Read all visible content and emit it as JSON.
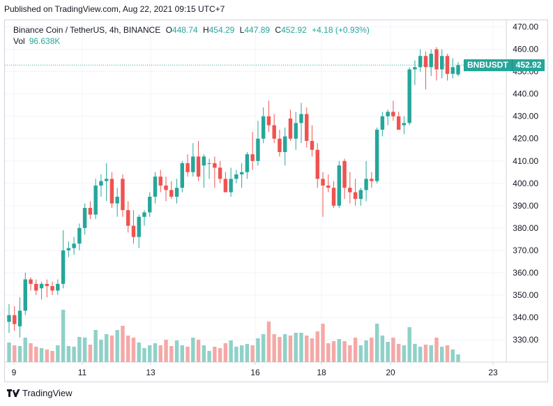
{
  "header": {
    "published": "Published on TradingView.com, Aug 22, 2021 09:15 UTC+7"
  },
  "legend": {
    "symbol": "Binance Coin / TetherUS, 4h, BINANCE",
    "open_label": "O",
    "open": "448.74",
    "high_label": "H",
    "high": "454.29",
    "low_label": "L",
    "low": "447.89",
    "close_label": "C",
    "close": "452.92",
    "change": "+4.18 (+0.93%)",
    "vol_label": "Vol",
    "vol": "96.638K"
  },
  "price_tag": {
    "symbol": "BNBUSDT",
    "price": "452.92"
  },
  "footer": {
    "brand": "TradingView"
  },
  "colors": {
    "up": "#26a69a",
    "down": "#ef5350",
    "up_vol": "#8fd1c8",
    "down_vol": "#f4a9a7"
  },
  "chart_data": {
    "type": "candlestick",
    "title": "Binance Coin / TetherUS, 4h, BINANCE",
    "xlabel": "",
    "ylabel": "",
    "x_ticks": [
      "9",
      "11",
      "13",
      "16",
      "18",
      "20",
      "23"
    ],
    "y_ticks": [
      "330.00",
      "340.00",
      "350.00",
      "360.00",
      "370.00",
      "380.00",
      "390.00",
      "400.00",
      "410.00",
      "420.00",
      "430.00",
      "440.00",
      "450.00",
      "460.00",
      "470.00"
    ],
    "ylim": [
      320,
      473
    ],
    "last_price": 452.92,
    "candles": [
      {
        "o": 338,
        "h": 346,
        "l": 333,
        "c": 341,
        "v": 28
      },
      {
        "o": 341,
        "h": 345,
        "l": 334,
        "c": 337,
        "v": 24
      },
      {
        "o": 336,
        "h": 349,
        "l": 331,
        "c": 343,
        "v": 23
      },
      {
        "o": 343,
        "h": 360,
        "l": 341,
        "c": 357,
        "v": 35
      },
      {
        "o": 357,
        "h": 358,
        "l": 352,
        "c": 355,
        "v": 27
      },
      {
        "o": 355,
        "h": 357,
        "l": 350,
        "c": 352,
        "v": 22
      },
      {
        "o": 353,
        "h": 356,
        "l": 348,
        "c": 355,
        "v": 20
      },
      {
        "o": 355,
        "h": 357,
        "l": 349,
        "c": 354,
        "v": 18
      },
      {
        "o": 354,
        "h": 356,
        "l": 350,
        "c": 352,
        "v": 16
      },
      {
        "o": 352,
        "h": 357,
        "l": 350,
        "c": 355,
        "v": 24
      },
      {
        "o": 355,
        "h": 379,
        "l": 353,
        "c": 370,
        "v": 75
      },
      {
        "o": 370,
        "h": 374,
        "l": 367,
        "c": 371,
        "v": 23
      },
      {
        "o": 371,
        "h": 376,
        "l": 368,
        "c": 373,
        "v": 22
      },
      {
        "o": 373,
        "h": 382,
        "l": 370,
        "c": 380,
        "v": 36
      },
      {
        "o": 380,
        "h": 391,
        "l": 377,
        "c": 389,
        "v": 35
      },
      {
        "o": 389,
        "h": 392,
        "l": 384,
        "c": 386,
        "v": 25
      },
      {
        "o": 386,
        "h": 402,
        "l": 384,
        "c": 399,
        "v": 46
      },
      {
        "o": 399,
        "h": 404,
        "l": 394,
        "c": 401,
        "v": 32
      },
      {
        "o": 401,
        "h": 409,
        "l": 392,
        "c": 402,
        "v": 40
      },
      {
        "o": 402,
        "h": 405,
        "l": 389,
        "c": 391,
        "v": 38
      },
      {
        "o": 391,
        "h": 398,
        "l": 385,
        "c": 394,
        "v": 46
      },
      {
        "o": 402,
        "h": 404,
        "l": 385,
        "c": 388,
        "v": 52
      },
      {
        "o": 388,
        "h": 392,
        "l": 378,
        "c": 381,
        "v": 38
      },
      {
        "o": 381,
        "h": 388,
        "l": 373,
        "c": 376,
        "v": 35
      },
      {
        "o": 376,
        "h": 386,
        "l": 371,
        "c": 385,
        "v": 28
      },
      {
        "o": 385,
        "h": 388,
        "l": 381,
        "c": 387,
        "v": 20
      },
      {
        "o": 387,
        "h": 396,
        "l": 385,
        "c": 394,
        "v": 24
      },
      {
        "o": 394,
        "h": 405,
        "l": 391,
        "c": 403,
        "v": 27
      },
      {
        "o": 403,
        "h": 406,
        "l": 396,
        "c": 399,
        "v": 24
      },
      {
        "o": 399,
        "h": 403,
        "l": 392,
        "c": 397,
        "v": 32
      },
      {
        "o": 397,
        "h": 401,
        "l": 393,
        "c": 394,
        "v": 23
      },
      {
        "o": 394,
        "h": 402,
        "l": 391,
        "c": 398,
        "v": 31
      },
      {
        "o": 398,
        "h": 410,
        "l": 396,
        "c": 409,
        "v": 24
      },
      {
        "o": 409,
        "h": 413,
        "l": 403,
        "c": 405,
        "v": 22
      },
      {
        "o": 405,
        "h": 418,
        "l": 403,
        "c": 412,
        "v": 35
      },
      {
        "o": 412,
        "h": 419,
        "l": 401,
        "c": 403,
        "v": 32
      },
      {
        "o": 408,
        "h": 413,
        "l": 398,
        "c": 412,
        "v": 24
      },
      {
        "o": 409,
        "h": 411,
        "l": 402,
        "c": 409,
        "v": 16
      },
      {
        "o": 409,
        "h": 412,
        "l": 398,
        "c": 407,
        "v": 22
      },
      {
        "o": 407,
        "h": 410,
        "l": 400,
        "c": 402,
        "v": 20
      },
      {
        "o": 402,
        "h": 405,
        "l": 396,
        "c": 396,
        "v": 27
      },
      {
        "o": 396,
        "h": 407,
        "l": 394,
        "c": 402,
        "v": 31
      },
      {
        "o": 402,
        "h": 406,
        "l": 400,
        "c": 404,
        "v": 22
      },
      {
        "o": 404,
        "h": 409,
        "l": 398,
        "c": 405,
        "v": 24
      },
      {
        "o": 405,
        "h": 414,
        "l": 402,
        "c": 413,
        "v": 26
      },
      {
        "o": 413,
        "h": 423,
        "l": 406,
        "c": 410,
        "v": 24
      },
      {
        "o": 410,
        "h": 428,
        "l": 408,
        "c": 420,
        "v": 34
      },
      {
        "o": 420,
        "h": 434,
        "l": 418,
        "c": 430,
        "v": 40
      },
      {
        "o": 430,
        "h": 437,
        "l": 423,
        "c": 426,
        "v": 58
      },
      {
        "o": 426,
        "h": 431,
        "l": 418,
        "c": 420,
        "v": 40
      },
      {
        "o": 420,
        "h": 424,
        "l": 412,
        "c": 414,
        "v": 36
      },
      {
        "o": 414,
        "h": 425,
        "l": 408,
        "c": 421,
        "v": 40
      },
      {
        "o": 429,
        "h": 433,
        "l": 419,
        "c": 420,
        "v": 38
      },
      {
        "o": 420,
        "h": 432,
        "l": 415,
        "c": 427,
        "v": 42
      },
      {
        "o": 427,
        "h": 436,
        "l": 418,
        "c": 431,
        "v": 42
      },
      {
        "o": 431,
        "h": 434,
        "l": 416,
        "c": 419,
        "v": 38
      },
      {
        "o": 419,
        "h": 426,
        "l": 412,
        "c": 415,
        "v": 34
      },
      {
        "o": 415,
        "h": 418,
        "l": 398,
        "c": 402,
        "v": 44
      },
      {
        "o": 402,
        "h": 405,
        "l": 385,
        "c": 399,
        "v": 55
      },
      {
        "o": 399,
        "h": 404,
        "l": 396,
        "c": 398,
        "v": 27
      },
      {
        "o": 398,
        "h": 401,
        "l": 389,
        "c": 390,
        "v": 30
      },
      {
        "o": 390,
        "h": 410,
        "l": 389,
        "c": 408,
        "v": 33
      },
      {
        "o": 410,
        "h": 411,
        "l": 393,
        "c": 398,
        "v": 30
      },
      {
        "o": 398,
        "h": 405,
        "l": 391,
        "c": 396,
        "v": 24
      },
      {
        "o": 396,
        "h": 402,
        "l": 390,
        "c": 393,
        "v": 35
      },
      {
        "o": 393,
        "h": 398,
        "l": 390,
        "c": 397,
        "v": 24
      },
      {
        "o": 397,
        "h": 410,
        "l": 392,
        "c": 402,
        "v": 31
      },
      {
        "o": 402,
        "h": 405,
        "l": 398,
        "c": 401,
        "v": 35
      },
      {
        "o": 401,
        "h": 425,
        "l": 400,
        "c": 424,
        "v": 55
      },
      {
        "o": 424,
        "h": 432,
        "l": 421,
        "c": 430,
        "v": 38
      },
      {
        "o": 430,
        "h": 433,
        "l": 426,
        "c": 432,
        "v": 29
      },
      {
        "o": 432,
        "h": 437,
        "l": 428,
        "c": 430,
        "v": 35
      },
      {
        "o": 430,
        "h": 432,
        "l": 424,
        "c": 424,
        "v": 26
      },
      {
        "o": 426,
        "h": 430,
        "l": 422,
        "c": 427,
        "v": 24
      },
      {
        "o": 427,
        "h": 452,
        "l": 426,
        "c": 451,
        "v": 50
      },
      {
        "o": 451,
        "h": 455,
        "l": 444,
        "c": 452,
        "v": 26
      },
      {
        "o": 452,
        "h": 460,
        "l": 450,
        "c": 457,
        "v": 22
      },
      {
        "o": 457,
        "h": 459,
        "l": 442,
        "c": 452,
        "v": 25
      },
      {
        "o": 452,
        "h": 460,
        "l": 448,
        "c": 458,
        "v": 24
      },
      {
        "o": 460,
        "h": 461,
        "l": 446,
        "c": 451,
        "v": 35
      },
      {
        "o": 451,
        "h": 460,
        "l": 447,
        "c": 457,
        "v": 22
      },
      {
        "o": 457,
        "h": 458,
        "l": 446,
        "c": 449,
        "v": 24
      },
      {
        "o": 449,
        "h": 456,
        "l": 447,
        "c": 452,
        "v": 18
      },
      {
        "o": 448.74,
        "h": 454.29,
        "l": 447.89,
        "c": 452.92,
        "v": 11
      }
    ]
  }
}
